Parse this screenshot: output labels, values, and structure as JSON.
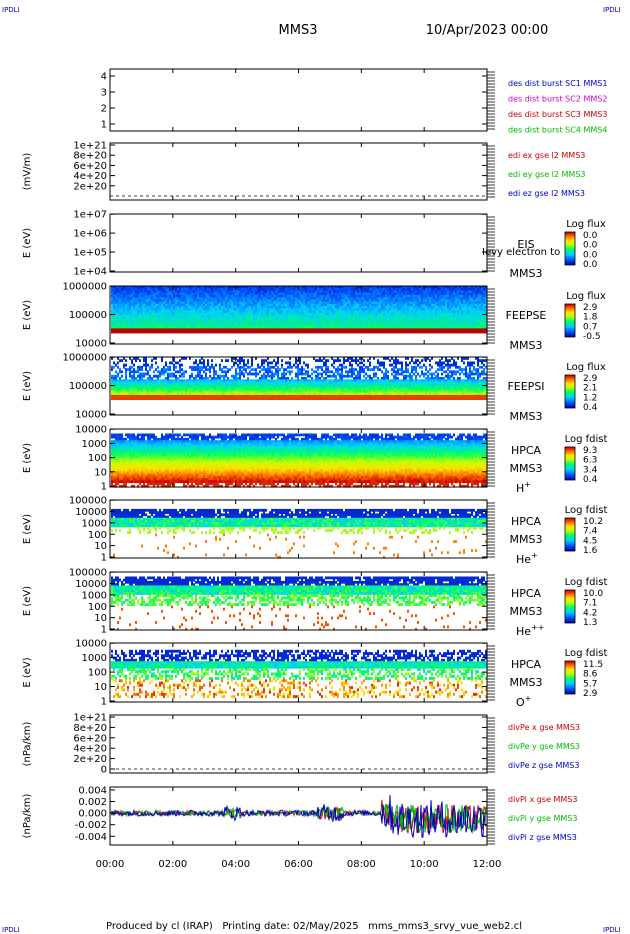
{
  "header": {
    "title": "MMS3",
    "date": "10/Apr/2023 00:00",
    "corner_label": "IPDLI"
  },
  "footer": {
    "text": "Produced by cl (IRAP)   Printing date: 02/May/2025   mms_mms3_srvy_vue_web2.cl"
  },
  "chart_data": [
    {
      "type": "line",
      "panel": "burst-intervals",
      "ylim": [
        0.5,
        4.3
      ],
      "yticks": [
        "1",
        "2",
        "3",
        "4"
      ],
      "legend": [
        {
          "name": "des dist burst SC1 MMS1",
          "color": "#0000cc"
        },
        {
          "name": "des dist burst SC2 MMS2",
          "color": "#cc00cc"
        },
        {
          "name": "des dist burst SC3 MMS3",
          "color": "#cc0000"
        },
        {
          "name": "des dist burst SC4 MMS4",
          "color": "#00bb00"
        }
      ]
    },
    {
      "type": "line",
      "panel": "edi-electric-field",
      "ylabel": "(mV/m)",
      "yticks": [
        "2e+20",
        "4e+20",
        "6e+20",
        "8e+20",
        "1e+21"
      ],
      "legend": [
        {
          "name": "edi ex gse l2 MMS3",
          "color": "#cc0000"
        },
        {
          "name": "edi ey gse l2 MMS3",
          "color": "#00bb00"
        },
        {
          "name": "edi ez gse l2 MMS3",
          "color": "#0000cc"
        }
      ]
    },
    {
      "type": "heatmap",
      "panel": "eis",
      "ylabel": "E (eV)",
      "yticks": [
        "1e+04",
        "1e+05",
        "1e+06",
        "1e+07"
      ],
      "instrument": "EIS",
      "spacecraft": "MMS3",
      "overlap_text": "Ievy electron to",
      "colorbar_title": "Log flux",
      "colorbar_ticks": [
        "0.0",
        "0.0",
        "0.0",
        "0.0"
      ]
    },
    {
      "type": "heatmap",
      "panel": "feepse",
      "ylabel": "E (eV)",
      "yticks": [
        "10000",
        "100000",
        "1000000"
      ],
      "instrument": "FEEPSE",
      "spacecraft": "MMS3",
      "colorbar_title": "Log flux",
      "colorbar_ticks": [
        "2.9",
        "1.8",
        "0.7",
        "-0.5"
      ]
    },
    {
      "type": "heatmap",
      "panel": "feepsi",
      "ylabel": "E (eV)",
      "yticks": [
        "10000",
        "100000",
        "1000000"
      ],
      "instrument": "FEEPSI",
      "spacecraft": "MMS3",
      "colorbar_title": "Log flux",
      "colorbar_ticks": [
        "2.9",
        "2.1",
        "1.2",
        "0.4"
      ]
    },
    {
      "type": "heatmap",
      "panel": "hpca-h",
      "ylabel": "E (eV)",
      "yticks": [
        "1",
        "10",
        "100",
        "1000",
        "10000"
      ],
      "instrument": "HPCA",
      "spacecraft": "MMS3",
      "species": "H",
      "charge": "+",
      "colorbar_title": "Log fdist",
      "colorbar_ticks": [
        "9.3",
        "6.3",
        "3.4",
        "0.4"
      ]
    },
    {
      "type": "heatmap",
      "panel": "hpca-he",
      "ylabel": "E (eV)",
      "yticks": [
        "1",
        "10",
        "100",
        "1000",
        "10000",
        "100000"
      ],
      "instrument": "HPCA",
      "spacecraft": "MMS3",
      "species": "He",
      "charge": "+",
      "colorbar_title": "Log fdist",
      "colorbar_ticks": [
        "10.2",
        "7.4",
        "4.5",
        "1.6"
      ]
    },
    {
      "type": "heatmap",
      "panel": "hpca-he2",
      "ylabel": "E (eV)",
      "yticks": [
        "1",
        "10",
        "100",
        "1000",
        "10000",
        "100000"
      ],
      "instrument": "HPCA",
      "spacecraft": "MMS3",
      "species": "He",
      "charge": "++",
      "colorbar_title": "Log fdist",
      "colorbar_ticks": [
        "10.0",
        "7.1",
        "4.2",
        "1.3"
      ]
    },
    {
      "type": "heatmap",
      "panel": "hpca-o",
      "ylabel": "E (eV)",
      "yticks": [
        "1",
        "10",
        "100",
        "1000",
        "10000"
      ],
      "instrument": "HPCA",
      "spacecraft": "MMS3",
      "species": "O",
      "charge": "+",
      "colorbar_title": "Log fdist",
      "colorbar_ticks": [
        "11.5",
        "8.6",
        "5.7",
        "2.9"
      ]
    },
    {
      "type": "line",
      "panel": "divpe",
      "ylabel": "(nPa/km)",
      "yticks": [
        "0",
        "2e+20",
        "4e+20",
        "6e+20",
        "8e+20",
        "1e+21"
      ],
      "legend": [
        {
          "name": "divPe x gse MMS3",
          "color": "#cc0000"
        },
        {
          "name": "divPe y gse MMS3",
          "color": "#00bb00"
        },
        {
          "name": "divPe z gse MMS3",
          "color": "#0000cc"
        }
      ]
    },
    {
      "type": "line",
      "panel": "divpi",
      "ylabel": "(nPa/km)",
      "ylim": [
        -0.0055,
        0.0045
      ],
      "yticks": [
        "-0.004",
        "-0.002",
        "0.000",
        "0.002",
        "0.004"
      ],
      "legend": [
        {
          "name": "divPi x gse MMS3",
          "color": "#cc0000"
        },
        {
          "name": "divPi y gse MMS3",
          "color": "#00bb00"
        },
        {
          "name": "divPi z gse MMS3",
          "color": "#0000cc"
        }
      ]
    }
  ],
  "time_axis": {
    "range_hours": [
      0,
      12
    ],
    "ticks": [
      "00:00",
      "02:00",
      "04:00",
      "06:00",
      "08:00",
      "10:00",
      "12:00"
    ]
  }
}
